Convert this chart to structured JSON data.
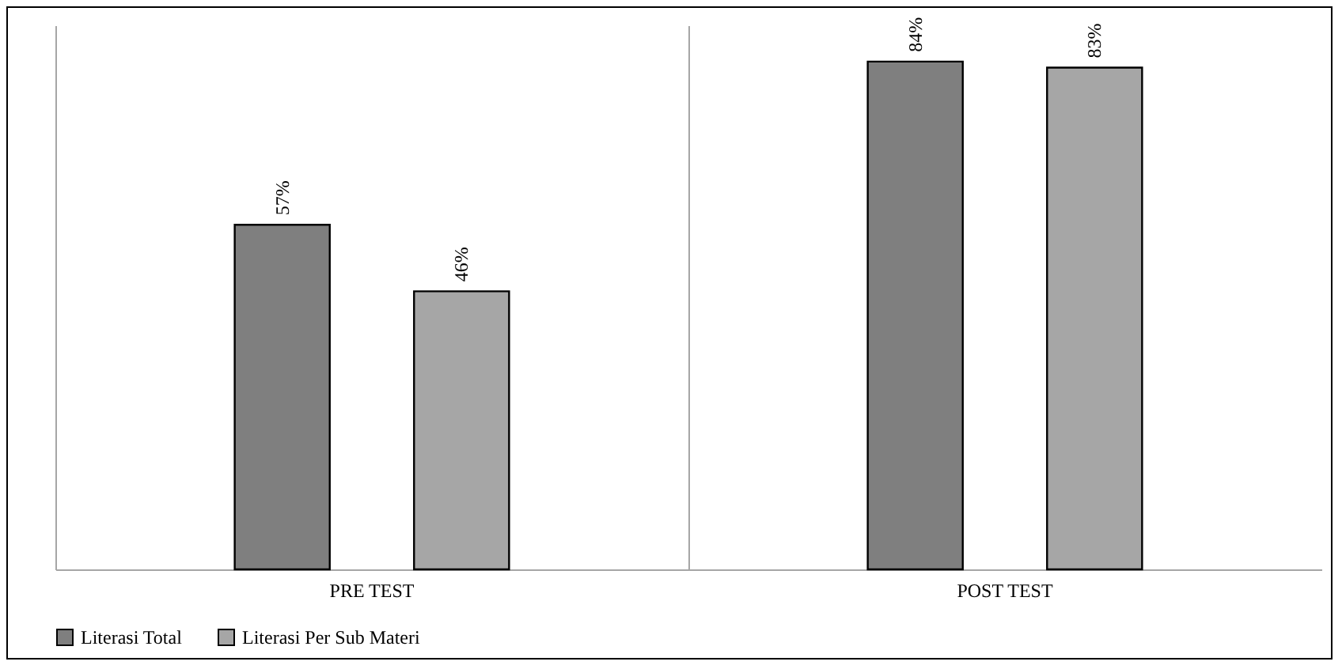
{
  "chart_data": {
    "type": "bar",
    "categories": [
      "PRE TEST",
      "POST TEST"
    ],
    "series": [
      {
        "name": "Literasi Total",
        "color": "#7f7f7f",
        "values": [
          57,
          84
        ],
        "value_labels": [
          "57%",
          "84%"
        ]
      },
      {
        "name": "Literasi Per Sub Materi",
        "color": "#a6a6a6",
        "values": [
          46,
          83
        ],
        "value_labels": [
          "46%",
          "83%"
        ]
      }
    ],
    "grid": "x",
    "legend": "bottom"
  }
}
